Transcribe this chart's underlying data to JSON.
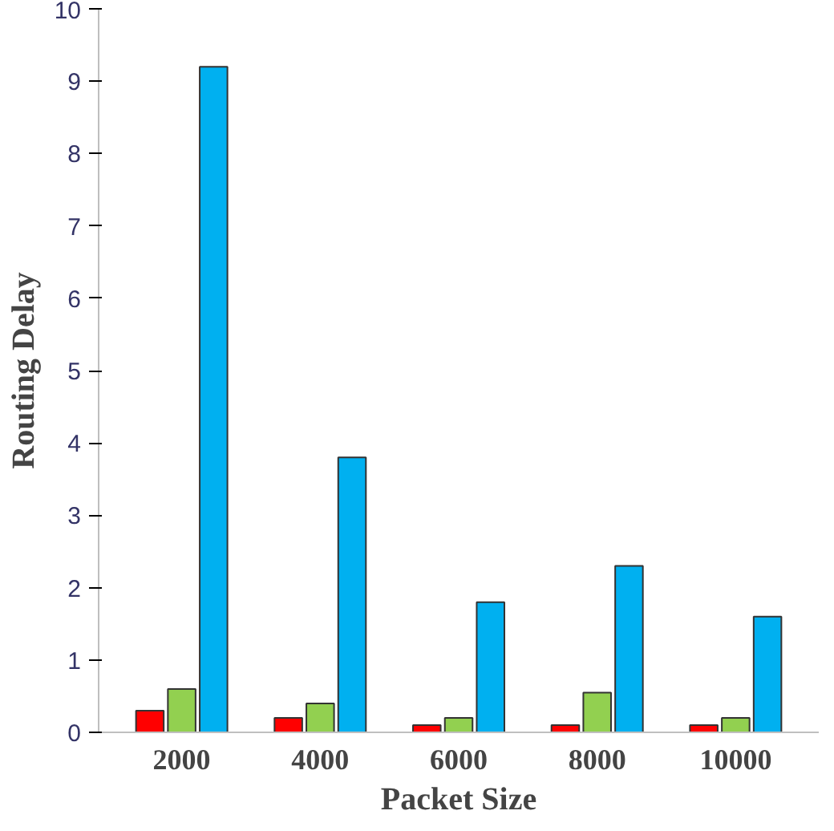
{
  "chart_data": {
    "type": "bar",
    "xlabel": "Packet Size",
    "ylabel": "Routing Delay",
    "categories": [
      "2000",
      "4000",
      "6000",
      "8000",
      "10000"
    ],
    "series": [
      {
        "color": "#ff0000",
        "values": [
          0.3,
          0.2,
          0.1,
          0.1,
          0.1
        ]
      },
      {
        "color": "#92d050",
        "values": [
          0.6,
          0.4,
          0.2,
          0.55,
          0.2
        ]
      },
      {
        "color": "#00b0f0",
        "values": [
          9.2,
          3.8,
          1.8,
          2.3,
          1.6
        ]
      }
    ],
    "ylim": [
      0,
      10
    ],
    "yticks": [
      0,
      1,
      2,
      3,
      4,
      5,
      6,
      7,
      8,
      9,
      10
    ],
    "grid": false
  }
}
